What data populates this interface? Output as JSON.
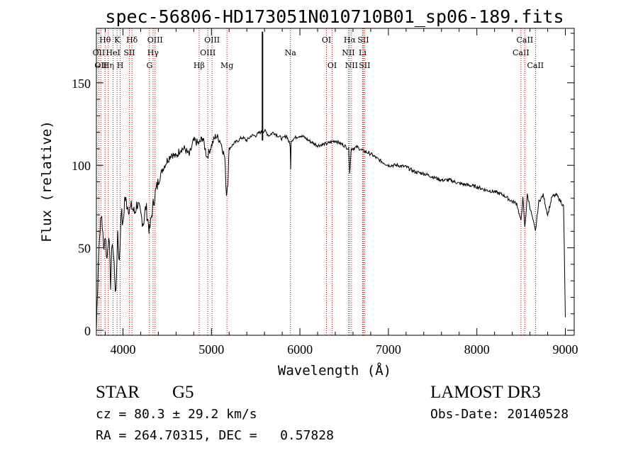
{
  "chart_data": {
    "type": "line",
    "title": "spec-56806-HD173051N010710B01_sp06-189.fits",
    "xlabel": "Wavelength (Å)",
    "ylabel": "Flux (relative)",
    "xlim": [
      3700,
      9100
    ],
    "ylim": [
      -3,
      183
    ],
    "xticks": [
      4000,
      5000,
      6000,
      7000,
      8000,
      9000
    ],
    "yticks": [
      0,
      50,
      100,
      150
    ],
    "series": [
      {
        "name": "spectrum",
        "x": [
          3700,
          3720,
          3740,
          3760,
          3780,
          3800,
          3820,
          3840,
          3860,
          3880,
          3900,
          3920,
          3940,
          3960,
          3980,
          4000,
          4020,
          4050,
          4080,
          4100,
          4130,
          4160,
          4200,
          4230,
          4260,
          4300,
          4330,
          4360,
          4400,
          4450,
          4500,
          4550,
          4600,
          4650,
          4700,
          4750,
          4800,
          4860,
          4900,
          4950,
          5000,
          5050,
          5100,
          5150,
          5170,
          5185,
          5200,
          5250,
          5300,
          5350,
          5400,
          5450,
          5500,
          5550,
          5600,
          5650,
          5700,
          5750,
          5800,
          5850,
          5890,
          5895,
          5900,
          5950,
          6000,
          6050,
          6100,
          6200,
          6300,
          6400,
          6500,
          6550,
          6563,
          6580,
          6650,
          6700,
          6800,
          6900,
          7000,
          7100,
          7200,
          7300,
          7400,
          7500,
          7600,
          7700,
          7800,
          7900,
          8000,
          8100,
          8200,
          8300,
          8400,
          8450,
          8498,
          8520,
          8542,
          8570,
          8620,
          8662,
          8700,
          8750,
          8800,
          8850,
          8900,
          8950,
          8980,
          9000
        ],
        "values": [
          0,
          40,
          62,
          70,
          50,
          58,
          43,
          60,
          28,
          55,
          40,
          20,
          60,
          40,
          74,
          62,
          80,
          76,
          73,
          75,
          71,
          77,
          70,
          65,
          75,
          60,
          72,
          82,
          90,
          98,
          103,
          107,
          105,
          110,
          110,
          106,
          115,
          113,
          117,
          105,
          112,
          118,
          115,
          105,
          82,
          90,
          110,
          113,
          115,
          117,
          115,
          118,
          118,
          120,
          121,
          118,
          120,
          118,
          116,
          118,
          112,
          97,
          115,
          117,
          118,
          117,
          115,
          112,
          113,
          115,
          112,
          110,
          96,
          110,
          111,
          109,
          107,
          103,
          100,
          100,
          99,
          96,
          95,
          93,
          91,
          91,
          89,
          88,
          87,
          85,
          84,
          82,
          78,
          77,
          66,
          80,
          62,
          82,
          70,
          60,
          78,
          82,
          70,
          81,
          82,
          78,
          75,
          8
        ]
      }
    ],
    "emission_peak": {
      "x": 5577,
      "value": 181
    },
    "lines": [
      {
        "x": 3727,
        "label": "OII",
        "row": 1
      },
      {
        "x": 3750,
        "label": "OII",
        "row": 2
      },
      {
        "x": 3798,
        "label": "Hθ",
        "row": 0
      },
      {
        "x": 3835,
        "label": "Hη",
        "row": 2
      },
      {
        "x": 3889,
        "label": "HeI",
        "row": 1
      },
      {
        "x": 3934,
        "label": "K",
        "row": 0
      },
      {
        "x": 3969,
        "label": "H",
        "row": 2
      },
      {
        "x": 4072,
        "label": "SII",
        "row": 1
      },
      {
        "x": 4102,
        "label": "Hδ",
        "row": 0
      },
      {
        "x": 4300,
        "label": "G",
        "row": 2
      },
      {
        "x": 4340,
        "label": "Hγ",
        "row": 1
      },
      {
        "x": 4363,
        "label": "OIII",
        "row": 0
      },
      {
        "x": 4861,
        "label": "Hβ",
        "row": 2
      },
      {
        "x": 4959,
        "label": "OIII",
        "row": 1
      },
      {
        "x": 5007,
        "label": "OIII",
        "row": 0
      },
      {
        "x": 5175,
        "label": "Mg",
        "row": 2
      },
      {
        "x": 5893,
        "label": "Na",
        "row": 1
      },
      {
        "x": 6300,
        "label": "OI",
        "row": 0
      },
      {
        "x": 6364,
        "label": "OI",
        "row": 2
      },
      {
        "x": 6548,
        "label": "NII",
        "row": 1
      },
      {
        "x": 6563,
        "label": "Hα",
        "row": 0
      },
      {
        "x": 6583,
        "label": "NII",
        "row": 2
      },
      {
        "x": 6708,
        "label": "Li",
        "row": 1
      },
      {
        "x": 6716,
        "label": "SII",
        "row": 0
      },
      {
        "x": 6731,
        "label": "SII",
        "row": 2
      },
      {
        "x": 8498,
        "label": "CaII",
        "row": 1
      },
      {
        "x": 8542,
        "label": "CaII",
        "row": 0
      },
      {
        "x": 8662,
        "label": "CaII",
        "row": 2
      }
    ]
  },
  "info": {
    "class": "STAR",
    "subclass": "G5",
    "survey": "LAMOST DR3",
    "cz": "cz = 80.3 ± 29.2 km/s",
    "obs_date": "Obs-Date: 20140528",
    "coords": "RA = 264.70315, DEC =   0.57828"
  },
  "colors": {
    "line_marker": "#cc0000",
    "spectrum": "#000000"
  }
}
